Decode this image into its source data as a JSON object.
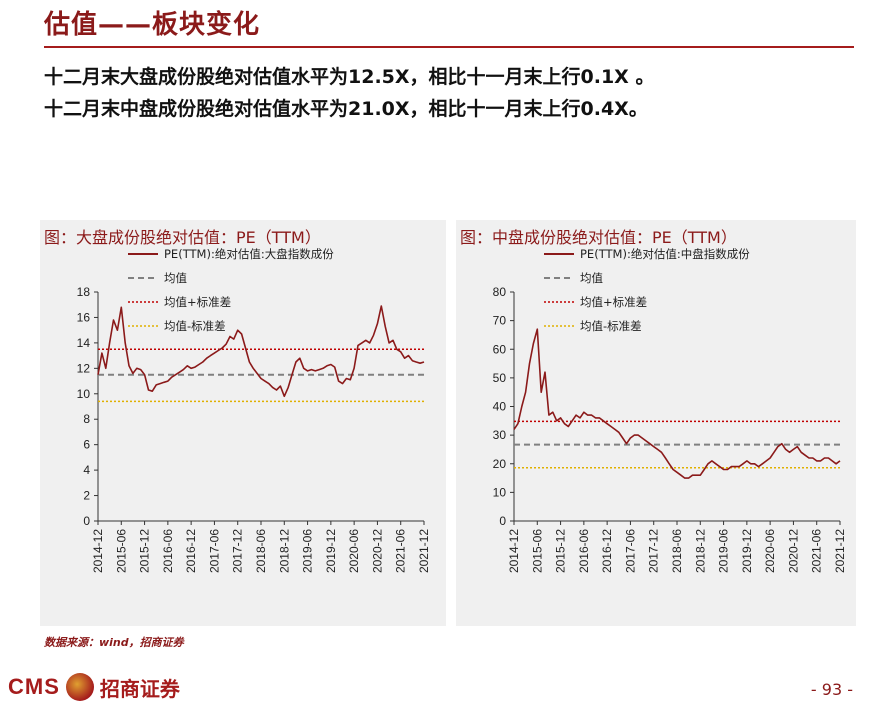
{
  "page": {
    "title": "估值——板块变化",
    "headline_1": "十二月末大盘成份股绝对估值水平为12.5X，相比十一月末上行0.1X 。",
    "headline_2": "十二月末中盘成份股绝对估值水平为21.0X，相比十一月末上行0.4X。",
    "source": "数据来源：wind，招商证券",
    "logo_text": "CMS",
    "logo_cn": "招商证券",
    "page_number": "- 93 -"
  },
  "colors": {
    "accent": "#a51c1c",
    "pe_line": "#8b1a1a",
    "mean_line": "#808080",
    "upper_line": "#c00000",
    "lower_line": "#e0b000",
    "panel_bg": "#f0f0f0"
  },
  "chart_data": [
    {
      "type": "line",
      "title": "图：大盘成份股绝对估值：PE（TTM）",
      "x_ticks": [
        "2014-12",
        "2015-06",
        "2015-12",
        "2016-06",
        "2016-12",
        "2017-06",
        "2017-12",
        "2018-06",
        "2018-12",
        "2019-06",
        "2019-12",
        "2020-06",
        "2020-12",
        "2021-06",
        "2021-12"
      ],
      "ylim": [
        0,
        18
      ],
      "y_ticks": [
        "0",
        "2",
        "4",
        "6",
        "8",
        "10",
        "12",
        "14",
        "16",
        "18"
      ],
      "legend": [
        "PE(TTM):绝对估值:大盘指数成份",
        "均值",
        "均值+标准差",
        "均值-标准差"
      ],
      "legend_position": "top-left",
      "mean": 11.5,
      "mean_plus_sd": 13.5,
      "mean_minus_sd": 9.4,
      "series": [
        {
          "name": "PE(TTM):绝对估值:大盘指数成份",
          "x": [
            "2014-12",
            "2015-01",
            "2015-02",
            "2015-03",
            "2015-04",
            "2015-05",
            "2015-06",
            "2015-07",
            "2015-08",
            "2015-09",
            "2015-10",
            "2015-11",
            "2015-12",
            "2016-01",
            "2016-02",
            "2016-03",
            "2016-04",
            "2016-05",
            "2016-06",
            "2016-07",
            "2016-08",
            "2016-09",
            "2016-10",
            "2016-11",
            "2016-12",
            "2017-01",
            "2017-02",
            "2017-03",
            "2017-04",
            "2017-05",
            "2017-06",
            "2017-07",
            "2017-08",
            "2017-09",
            "2017-10",
            "2017-11",
            "2017-12",
            "2018-01",
            "2018-02",
            "2018-03",
            "2018-04",
            "2018-05",
            "2018-06",
            "2018-07",
            "2018-08",
            "2018-09",
            "2018-10",
            "2018-11",
            "2018-12",
            "2019-01",
            "2019-02",
            "2019-03",
            "2019-04",
            "2019-05",
            "2019-06",
            "2019-07",
            "2019-08",
            "2019-09",
            "2019-10",
            "2019-11",
            "2019-12",
            "2020-01",
            "2020-02",
            "2020-03",
            "2020-04",
            "2020-05",
            "2020-06",
            "2020-07",
            "2020-08",
            "2020-09",
            "2020-10",
            "2020-11",
            "2020-12",
            "2021-01",
            "2021-02",
            "2021-03",
            "2021-04",
            "2021-05",
            "2021-06",
            "2021-07",
            "2021-08",
            "2021-09",
            "2021-10",
            "2021-11",
            "2021-12"
          ],
          "y": [
            11.5,
            13.2,
            12.0,
            14.0,
            15.8,
            15.0,
            16.8,
            14.0,
            12.2,
            11.6,
            12.0,
            11.9,
            11.5,
            10.3,
            10.2,
            10.7,
            10.8,
            10.9,
            11.0,
            11.3,
            11.5,
            11.7,
            11.9,
            12.2,
            12.0,
            12.1,
            12.3,
            12.5,
            12.8,
            13.0,
            13.2,
            13.4,
            13.6,
            13.9,
            14.5,
            14.3,
            15.0,
            14.7,
            13.6,
            12.5,
            12.0,
            11.6,
            11.2,
            11.0,
            10.8,
            10.5,
            10.3,
            10.6,
            9.8,
            10.5,
            11.5,
            12.5,
            12.8,
            12.0,
            11.8,
            11.9,
            11.8,
            11.9,
            12.0,
            12.2,
            12.3,
            12.1,
            11.0,
            10.8,
            11.2,
            11.1,
            12.0,
            13.8,
            14.0,
            14.2,
            14.0,
            14.6,
            15.5,
            16.9,
            15.3,
            14.0,
            14.2,
            13.5,
            13.3,
            12.8,
            13.0,
            12.6,
            12.5,
            12.4,
            12.5
          ]
        }
      ]
    },
    {
      "type": "line",
      "title": "图：中盘成份股绝对估值：PE（TTM）",
      "x_ticks": [
        "2014-12",
        "2015-06",
        "2015-12",
        "2016-06",
        "2016-12",
        "2017-06",
        "2017-12",
        "2018-06",
        "2018-12",
        "2019-06",
        "2019-12",
        "2020-06",
        "2020-12",
        "2021-06",
        "2021-12"
      ],
      "ylim": [
        0,
        80
      ],
      "y_ticks": [
        "0",
        "10",
        "20",
        "30",
        "40",
        "50",
        "60",
        "70",
        "80"
      ],
      "legend": [
        "PE(TTM):绝对估值:中盘指数成份",
        "均值",
        "均值+标准差",
        "均值-标准差"
      ],
      "legend_position": "top-left",
      "mean": 26.7,
      "mean_plus_sd": 34.8,
      "mean_minus_sd": 18.6,
      "series": [
        {
          "name": "PE(TTM):绝对估值:中盘指数成份",
          "x": [
            "2014-12",
            "2015-01",
            "2015-02",
            "2015-03",
            "2015-04",
            "2015-05",
            "2015-06",
            "2015-07",
            "2015-08",
            "2015-09",
            "2015-10",
            "2015-11",
            "2015-12",
            "2016-01",
            "2016-02",
            "2016-03",
            "2016-04",
            "2016-05",
            "2016-06",
            "2016-07",
            "2016-08",
            "2016-09",
            "2016-10",
            "2016-11",
            "2016-12",
            "2017-01",
            "2017-02",
            "2017-03",
            "2017-04",
            "2017-05",
            "2017-06",
            "2017-07",
            "2017-08",
            "2017-09",
            "2017-10",
            "2017-11",
            "2017-12",
            "2018-01",
            "2018-02",
            "2018-03",
            "2018-04",
            "2018-05",
            "2018-06",
            "2018-07",
            "2018-08",
            "2018-09",
            "2018-10",
            "2018-11",
            "2018-12",
            "2019-01",
            "2019-02",
            "2019-03",
            "2019-04",
            "2019-05",
            "2019-06",
            "2019-07",
            "2019-08",
            "2019-09",
            "2019-10",
            "2019-11",
            "2019-12",
            "2020-01",
            "2020-02",
            "2020-03",
            "2020-04",
            "2020-05",
            "2020-06",
            "2020-07",
            "2020-08",
            "2020-09",
            "2020-10",
            "2020-11",
            "2020-12",
            "2021-01",
            "2021-02",
            "2021-03",
            "2021-04",
            "2021-05",
            "2021-06",
            "2021-07",
            "2021-08",
            "2021-09",
            "2021-10",
            "2021-11",
            "2021-12"
          ],
          "y": [
            32,
            34,
            40,
            45,
            55,
            62,
            67,
            45,
            52,
            37,
            38,
            35,
            36,
            34,
            33,
            35,
            37,
            36,
            38,
            37,
            37,
            36,
            36,
            35,
            34,
            33,
            32,
            31,
            29,
            27,
            29,
            30,
            30,
            29,
            28,
            27,
            26,
            25,
            24,
            22,
            20,
            18,
            17,
            16,
            15,
            15,
            16,
            16,
            16,
            18,
            20,
            21,
            20,
            19,
            18,
            18,
            19,
            19,
            19,
            20,
            21,
            20,
            20,
            19,
            20,
            21,
            22,
            24,
            26,
            27,
            25,
            24,
            25,
            26,
            24,
            23,
            22,
            22,
            21,
            21,
            22,
            22,
            21,
            20,
            21
          ]
        }
      ]
    }
  ]
}
